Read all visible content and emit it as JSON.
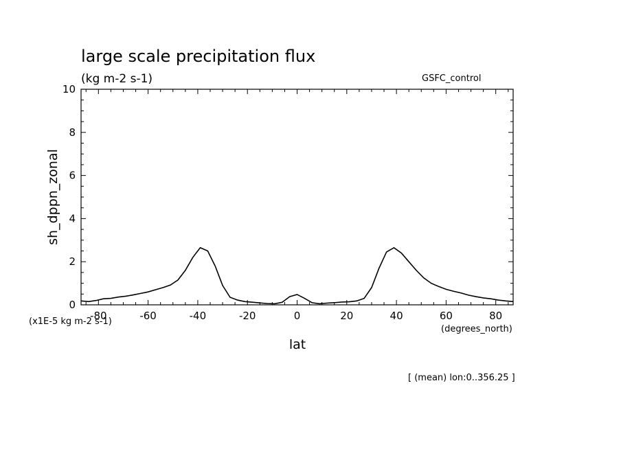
{
  "chart_data": {
    "type": "line",
    "title": "large scale precipitation flux",
    "subtitle": "(kg m-2 s-1)",
    "dataset_label": "GSFC_control",
    "ylabel": "sh_dppn_zonal",
    "xlabel": "lat",
    "x_units": "(degrees_north)",
    "y_scale_note": "(x1E-5 kg m-2 s-1)",
    "footnote": "[ (mean) lon:0..356.25 ]",
    "xlim": [
      -87,
      87
    ],
    "ylim": [
      0,
      10
    ],
    "x_ticks": [
      -80,
      -60,
      -40,
      -20,
      0,
      20,
      40,
      60,
      80
    ],
    "y_ticks": [
      0,
      2,
      4,
      6,
      8,
      10
    ],
    "x_tick_labels": [
      "-80",
      "-60",
      "-40",
      "-20",
      "0",
      "20",
      "40",
      "60",
      "80"
    ],
    "y_tick_labels": [
      "0",
      "2",
      "4",
      "6",
      "8",
      "10"
    ],
    "grid": false,
    "series": [
      {
        "x": [
          -87,
          -84,
          -81,
          -78,
          -75,
          -72,
          -69,
          -66,
          -63,
          -60,
          -57,
          -54,
          -51,
          -48,
          -45,
          -42,
          -39,
          -36,
          -33,
          -30,
          -27,
          -24,
          -21,
          -18,
          -15,
          -12,
          -9,
          -6,
          -3,
          0,
          3,
          6,
          9,
          12,
          15,
          18,
          21,
          24,
          27,
          30,
          33,
          36,
          39,
          42,
          45,
          48,
          51,
          54,
          57,
          60,
          63,
          66,
          69,
          72,
          75,
          78,
          81,
          84,
          87
        ],
        "y": [
          0.18,
          0.15,
          0.2,
          0.28,
          0.3,
          0.36,
          0.4,
          0.46,
          0.53,
          0.6,
          0.7,
          0.8,
          0.92,
          1.15,
          1.6,
          2.2,
          2.65,
          2.5,
          1.8,
          0.9,
          0.35,
          0.22,
          0.15,
          0.12,
          0.09,
          0.06,
          0.05,
          0.12,
          0.38,
          0.48,
          0.3,
          0.1,
          0.05,
          0.08,
          0.1,
          0.13,
          0.14,
          0.18,
          0.3,
          0.8,
          1.7,
          2.45,
          2.65,
          2.4,
          2.0,
          1.6,
          1.25,
          1.0,
          0.85,
          0.72,
          0.63,
          0.55,
          0.45,
          0.38,
          0.32,
          0.28,
          0.22,
          0.18,
          0.15
        ]
      }
    ]
  }
}
